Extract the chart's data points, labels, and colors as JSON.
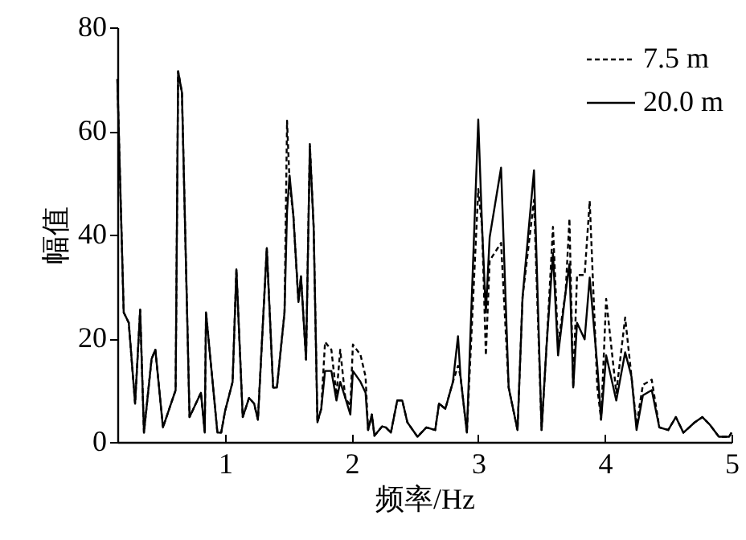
{
  "chart_data": {
    "type": "line",
    "xlabel": "频率/Hz",
    "ylabel": "幅值",
    "x": [
      0.15,
      0.2,
      0.24,
      0.29,
      0.33,
      0.36,
      0.42,
      0.45,
      0.51,
      0.61,
      0.63,
      0.66,
      0.72,
      0.81,
      0.84,
      0.85,
      0.94,
      0.97,
      1.0,
      1.06,
      1.09,
      1.14,
      1.19,
      1.23,
      1.26,
      1.33,
      1.38,
      1.41,
      1.47,
      1.49,
      1.51,
      1.54,
      1.58,
      1.6,
      1.64,
      1.67,
      1.7,
      1.73,
      1.76,
      1.79,
      1.84,
      1.88,
      1.91,
      1.95,
      1.99,
      2.01,
      2.07,
      2.11,
      2.13,
      2.16,
      2.18,
      2.24,
      2.27,
      2.31,
      2.36,
      2.4,
      2.44,
      2.52,
      2.59,
      2.66,
      2.69,
      2.74,
      2.8,
      2.84,
      2.86,
      2.91,
      3.0,
      3.03,
      3.06,
      3.09,
      3.18,
      3.24,
      3.31,
      3.35,
      3.44,
      3.5,
      3.54,
      3.59,
      3.63,
      3.69,
      3.72,
      3.75,
      3.78,
      3.84,
      3.88,
      3.94,
      3.97,
      4.01,
      4.09,
      4.16,
      4.21,
      4.25,
      4.3,
      4.37,
      4.43,
      4.5,
      4.56,
      4.62,
      4.71,
      4.77,
      4.83,
      4.9,
      4.98,
      5.0
    ],
    "series": [
      {
        "name": "7.5 m",
        "color": "#000000",
        "line_style": "dashed",
        "values": [
          70,
          25,
          23,
          7.4,
          25.5,
          1.8,
          16,
          17.8,
          2.8,
          10,
          71.5,
          67.4,
          4.8,
          9.5,
          1.8,
          25,
          1.8,
          1.8,
          5.9,
          11.6,
          33.3,
          4.8,
          8.5,
          7.4,
          4.3,
          37.4,
          10.5,
          10.5,
          25,
          62,
          50,
          43.6,
          27,
          32,
          15.9,
          57.5,
          41.5,
          3.8,
          6.4,
          19.3,
          17.8,
          9,
          17.8,
          8.5,
          7,
          18.8,
          16.8,
          12.6,
          2.3,
          5.3,
          1.2,
          3,
          2.8,
          1.8,
          8,
          8,
          3.8,
          1,
          2.8,
          2.3,
          7.4,
          6.4,
          11.6,
          14.7,
          12.6,
          1.8,
          48.8,
          41.5,
          16.7,
          35,
          38.4,
          10.5,
          2.3,
          28,
          46.7,
          2.3,
          18.8,
          41.5,
          18.8,
          29,
          43.1,
          10.5,
          32.2,
          32.2,
          46.5,
          10.5,
          4.3,
          27.6,
          9.5,
          24,
          12.6,
          3.3,
          11,
          12,
          2.8,
          2.3,
          4.8,
          1.8,
          3.8,
          4.8,
          3.3,
          1,
          1,
          1.8
        ]
      },
      {
        "name": "20.0 m",
        "color": "#000000",
        "line_style": "solid",
        "values": [
          70,
          25,
          23,
          7.4,
          25.5,
          1.8,
          16,
          17.8,
          2.8,
          10,
          71.5,
          67.4,
          4.8,
          9.5,
          1.8,
          25,
          1.8,
          1.8,
          5.9,
          11.6,
          33.3,
          4.8,
          8.5,
          7.4,
          4.3,
          37.4,
          10.5,
          10.5,
          25,
          44.6,
          51.4,
          43.6,
          27,
          32,
          15.9,
          57,
          41.5,
          3.8,
          6.4,
          13.7,
          13.7,
          8,
          11.6,
          8.5,
          5.3,
          13.7,
          11.6,
          9.5,
          2.3,
          5.3,
          1.2,
          3,
          2.8,
          1.8,
          8,
          8,
          3.8,
          1,
          2.8,
          2.3,
          7.4,
          6.4,
          11.6,
          20.4,
          12.6,
          1.8,
          62.2,
          41.5,
          25,
          39.5,
          52.9,
          10.5,
          2.3,
          28,
          52.4,
          2.3,
          18.8,
          36.4,
          16.7,
          29,
          34.3,
          10.5,
          23,
          19.8,
          31.7,
          14.7,
          4.3,
          16.7,
          8,
          17.3,
          12.6,
          2.3,
          9,
          10,
          2.8,
          2.3,
          4.8,
          1.8,
          3.8,
          4.8,
          3.3,
          1,
          1,
          1.8
        ]
      }
    ],
    "xlim": [
      0.15,
      5
    ],
    "xticks": [
      1,
      2,
      3,
      4,
      5
    ],
    "ylim": [
      0,
      80
    ],
    "yticks": [
      0,
      20,
      40,
      60,
      80
    ],
    "grid": false,
    "legend": "top right",
    "marker": "none"
  }
}
